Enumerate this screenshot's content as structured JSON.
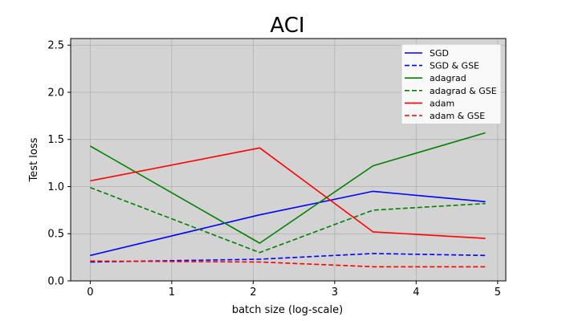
{
  "chart_data": {
    "type": "line",
    "title": "ACI",
    "xlabel": "batch size (log-scale)",
    "ylabel": "Test loss",
    "xlim": [
      -0.24,
      5.1
    ],
    "ylim": [
      0,
      2.57
    ],
    "xticks": [
      0,
      1,
      2,
      3,
      4,
      5
    ],
    "yticks": [
      0.0,
      0.5,
      1.0,
      1.5,
      2.0,
      2.5
    ],
    "xtick_labels": [
      "0",
      "1",
      "2",
      "3",
      "4",
      "5"
    ],
    "ytick_labels": [
      "0.0",
      "0.5",
      "1.0",
      "1.5",
      "2.0",
      "2.5"
    ],
    "grid": true,
    "background": "#d3d3d3",
    "legend_position": "top-right",
    "x": [
      0,
      2.08,
      3.47,
      4.85
    ],
    "series": [
      {
        "name": "SGD",
        "color": "#0000ff",
        "style": "solid",
        "values": [
          0.27,
          0.7,
          0.95,
          0.84
        ]
      },
      {
        "name": "SGD & GSE",
        "color": "#0000ff",
        "style": "dashed",
        "values": [
          0.2,
          0.23,
          0.29,
          0.27
        ]
      },
      {
        "name": "adagrad",
        "color": "#008000",
        "style": "solid",
        "values": [
          1.43,
          0.4,
          1.22,
          1.57
        ]
      },
      {
        "name": "adagrad & GSE",
        "color": "#008000",
        "style": "dashed",
        "values": [
          0.99,
          0.3,
          0.75,
          0.82
        ]
      },
      {
        "name": "adam",
        "color": "#ff0000",
        "style": "solid",
        "values": [
          1.06,
          1.41,
          0.52,
          0.45
        ]
      },
      {
        "name": "adam & GSE",
        "color": "#ff0000",
        "style": "dashed",
        "values": [
          0.21,
          0.2,
          0.15,
          0.15
        ]
      }
    ]
  }
}
